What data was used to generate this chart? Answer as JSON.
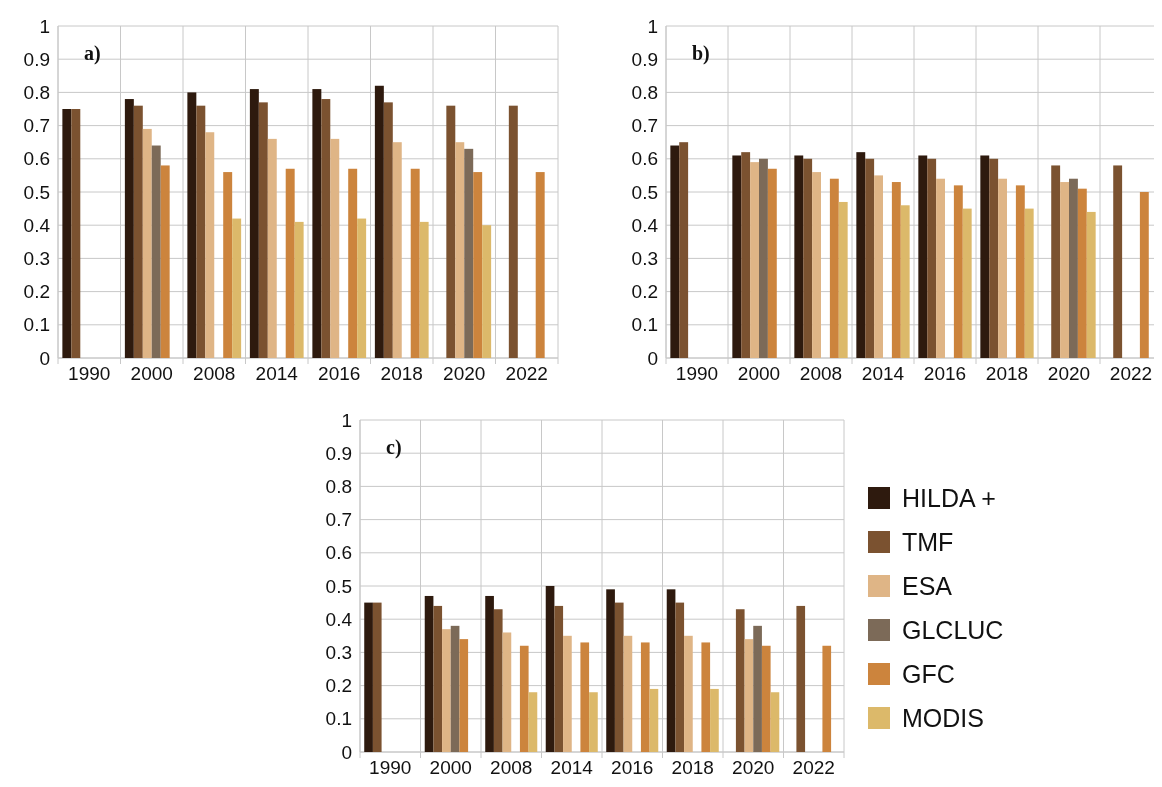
{
  "chart_data": [
    {
      "type": "bar",
      "title": "a)",
      "categories": [
        "1990",
        "2000",
        "2008",
        "2014",
        "2016",
        "2018",
        "2020",
        "2022"
      ],
      "ylim": [
        0,
        1
      ],
      "yticks": [
        0,
        0.1,
        0.2,
        0.3,
        0.4,
        0.5,
        0.6,
        0.7,
        0.8,
        0.9,
        1
      ],
      "grid": true,
      "legend": false,
      "series": [
        {
          "color": "#2e1a0e",
          "values": [
            0.75,
            0.78,
            0.8,
            0.81,
            0.81,
            0.82,
            null,
            null
          ]
        },
        {
          "color": "#7b5230",
          "values": [
            0.75,
            0.76,
            0.76,
            0.77,
            0.78,
            0.77,
            0.76,
            0.76
          ]
        },
        {
          "color": "#dfb586",
          "values": [
            null,
            0.69,
            0.68,
            0.66,
            0.66,
            0.65,
            0.65,
            null
          ]
        },
        {
          "color": "#7c6a58",
          "values": [
            null,
            0.64,
            null,
            null,
            null,
            null,
            0.63,
            null
          ]
        },
        {
          "color": "#cc843d",
          "values": [
            null,
            0.58,
            0.56,
            0.57,
            0.57,
            0.57,
            0.56,
            0.56
          ]
        },
        {
          "color": "#dcb96a",
          "values": [
            null,
            null,
            0.42,
            0.41,
            0.42,
            0.41,
            0.4,
            null
          ]
        }
      ]
    },
    {
      "type": "bar",
      "title": "b)",
      "categories": [
        "1990",
        "2000",
        "2008",
        "2014",
        "2016",
        "2018",
        "2020",
        "2022"
      ],
      "ylim": [
        0,
        1
      ],
      "yticks": [
        0,
        0.1,
        0.2,
        0.3,
        0.4,
        0.5,
        0.6,
        0.7,
        0.8,
        0.9,
        1
      ],
      "grid": true,
      "legend": false,
      "series": [
        {
          "color": "#2e1a0e",
          "values": [
            0.64,
            0.61,
            0.61,
            0.62,
            0.61,
            0.61,
            null,
            null
          ]
        },
        {
          "color": "#7b5230",
          "values": [
            0.65,
            0.62,
            0.6,
            0.6,
            0.6,
            0.6,
            0.58,
            0.58
          ]
        },
        {
          "color": "#dfb586",
          "values": [
            null,
            0.59,
            0.56,
            0.55,
            0.54,
            0.54,
            0.53,
            null
          ]
        },
        {
          "color": "#7c6a58",
          "values": [
            null,
            0.6,
            null,
            null,
            null,
            null,
            0.54,
            null
          ]
        },
        {
          "color": "#cc843d",
          "values": [
            null,
            0.57,
            0.54,
            0.53,
            0.52,
            0.52,
            0.51,
            0.5
          ]
        },
        {
          "color": "#dcb96a",
          "values": [
            null,
            null,
            0.47,
            0.46,
            0.45,
            0.45,
            0.44,
            null
          ]
        }
      ]
    },
    {
      "type": "bar",
      "title": "c)",
      "categories": [
        "1990",
        "2000",
        "2008",
        "2014",
        "2016",
        "2018",
        "2020",
        "2022"
      ],
      "ylim": [
        0,
        1
      ],
      "yticks": [
        0,
        0.1,
        0.2,
        0.3,
        0.4,
        0.5,
        0.6,
        0.7,
        0.8,
        0.9,
        1
      ],
      "grid": true,
      "legend": "right",
      "series": [
        {
          "name": "HILDA +",
          "color": "#2e1a0e",
          "values": [
            0.45,
            0.47,
            0.47,
            0.5,
            0.49,
            0.49,
            null,
            null
          ]
        },
        {
          "name": "TMF",
          "color": "#7b5230",
          "values": [
            0.45,
            0.44,
            0.43,
            0.44,
            0.45,
            0.45,
            0.43,
            0.44
          ]
        },
        {
          "name": "ESA",
          "color": "#dfb586",
          "values": [
            null,
            0.37,
            0.36,
            0.35,
            0.35,
            0.35,
            0.34,
            null
          ]
        },
        {
          "name": "GLCLUC",
          "color": "#7c6a58",
          "values": [
            null,
            0.38,
            null,
            null,
            null,
            null,
            0.38,
            null
          ]
        },
        {
          "name": "GFC",
          "color": "#cc843d",
          "values": [
            null,
            0.34,
            0.32,
            0.33,
            0.33,
            0.33,
            0.32,
            0.32
          ]
        },
        {
          "name": "MODIS",
          "color": "#dcb96a",
          "values": [
            null,
            null,
            0.18,
            0.18,
            0.19,
            0.19,
            0.18,
            null
          ]
        }
      ]
    }
  ]
}
